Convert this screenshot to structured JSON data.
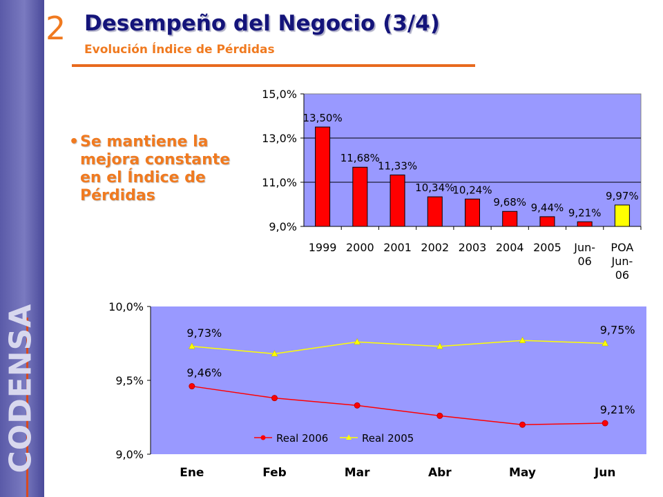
{
  "slide": {
    "section_number": "2",
    "title": "Desempeño del Negocio (3/4)",
    "subtitle": "Evolución Índice de Pérdidas",
    "bullet": "Se mantiene la mejora constante en el Índice de Pérdidas",
    "brand": "CODENSA"
  },
  "colors": {
    "plot_bg": "#9999ff",
    "real": "#ff0000",
    "poa": "#ffff00",
    "title": "#14147a",
    "accent": "#f07a20"
  },
  "chart_data": [
    {
      "type": "bar",
      "categories": [
        "1999",
        "2000",
        "2001",
        "2002",
        "2003",
        "2004",
        "2005",
        "Jun-06",
        "POA Jun-06"
      ],
      "category_lines": [
        [
          "1999"
        ],
        [
          "2000"
        ],
        [
          "2001"
        ],
        [
          "2002"
        ],
        [
          "2003"
        ],
        [
          "2004"
        ],
        [
          "2005"
        ],
        [
          "Jun-",
          "06"
        ],
        [
          "POA",
          "Jun-",
          "06"
        ]
      ],
      "values": [
        13.5,
        11.68,
        11.33,
        10.34,
        10.24,
        9.68,
        9.44,
        9.21,
        9.97
      ],
      "data_labels": [
        "13,50%",
        "11,68%",
        "11,33%",
        "10,34%",
        "10,24%",
        "9,68%",
        "9,44%",
        "9,21%",
        "9,97%"
      ],
      "bar_colors": [
        "#ff0000",
        "#ff0000",
        "#ff0000",
        "#ff0000",
        "#ff0000",
        "#ff0000",
        "#ff0000",
        "#ff0000",
        "#ffff00"
      ],
      "ylim": [
        9.0,
        15.0
      ],
      "y_ticks": [
        9.0,
        11.0,
        13.0,
        15.0
      ],
      "y_tick_labels": [
        "9,0%",
        "11,0%",
        "13,0%",
        "15,0%"
      ],
      "grid": true
    },
    {
      "type": "line",
      "categories": [
        "Ene",
        "Feb",
        "Mar",
        "Abr",
        "May",
        "Jun"
      ],
      "series": [
        {
          "name": "Real 2006",
          "color": "#ff0000",
          "marker": "circle",
          "values": [
            9.46,
            9.38,
            9.33,
            9.26,
            9.2,
            9.21
          ],
          "labels": [
            "9,46%",
            "",
            "",
            "",
            "",
            "9,21%"
          ]
        },
        {
          "name": "Real 2005",
          "color": "#ffff00",
          "marker": "triangle",
          "values": [
            9.73,
            9.68,
            9.76,
            9.73,
            9.77,
            9.75
          ],
          "labels": [
            "9,73%",
            "",
            "",
            "",
            "",
            "9,75%"
          ]
        }
      ],
      "ylim": [
        9.0,
        10.0
      ],
      "y_ticks": [
        9.0,
        9.5,
        10.0
      ],
      "y_tick_labels": [
        "9,0%",
        "9,5%",
        "10,0%"
      ],
      "legend": "bottom-center"
    }
  ]
}
